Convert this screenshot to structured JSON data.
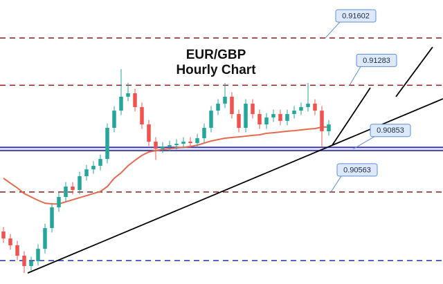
{
  "chart_data": {
    "type": "candlestick",
    "title": "EUR/GBP",
    "subtitle": "Hourly Chart",
    "xlim": [
      -0.5,
      63.5
    ],
    "ylim": [
      0.89943,
      0.91858
    ],
    "colors": {
      "up": "#26a69a",
      "down": "#ef5350"
    },
    "open": [
      0.90297,
      0.9025,
      0.90204,
      0.90134,
      0.90064,
      0.90097,
      0.9018,
      0.9032,
      0.9046,
      0.9053,
      0.906,
      0.90577,
      0.9067,
      0.90716,
      0.9074,
      0.90786,
      0.90996,
      0.91112,
      0.91206,
      0.91229,
      0.91136,
      0.91019,
      0.90903,
      0.90856,
      0.9087,
      0.90879,
      0.90889,
      0.90903,
      0.90893,
      0.90926,
      0.90996,
      0.91112,
      0.91159,
      0.91206,
      0.91089,
      0.90996,
      0.91159,
      0.91089,
      0.91019,
      0.91066,
      0.91089,
      0.91043,
      0.91089,
      0.91112,
      0.91136,
      0.91159,
      0.91112,
      0.90973
    ],
    "close": [
      0.9025,
      0.90204,
      0.90134,
      0.90064,
      0.90097,
      0.9018,
      0.9032,
      0.9046,
      0.9053,
      0.906,
      0.90577,
      0.9067,
      0.90716,
      0.9074,
      0.90786,
      0.90996,
      0.91112,
      0.91206,
      0.91229,
      0.91136,
      0.91019,
      0.90903,
      0.90856,
      0.9087,
      0.90879,
      0.90889,
      0.90903,
      0.90893,
      0.90926,
      0.90996,
      0.91112,
      0.91159,
      0.91206,
      0.91089,
      0.90996,
      0.91159,
      0.91089,
      0.91019,
      0.91066,
      0.91089,
      0.91043,
      0.91089,
      0.91112,
      0.91136,
      0.91159,
      0.91112,
      0.90973,
      0.91019
    ],
    "high": [
      0.90327,
      0.9028,
      0.90234,
      0.90164,
      0.90127,
      0.9021,
      0.9035,
      0.9049,
      0.9056,
      0.9063,
      0.9063,
      0.907,
      0.90746,
      0.9077,
      0.90816,
      0.91026,
      0.91142,
      0.91392,
      0.913,
      0.91259,
      0.91166,
      0.91049,
      0.90933,
      0.909,
      0.90909,
      0.90919,
      0.90933,
      0.90933,
      0.90956,
      0.91026,
      0.91142,
      0.91189,
      0.91299,
      0.91236,
      0.91119,
      0.91189,
      0.91189,
      0.91119,
      0.91096,
      0.91119,
      0.91119,
      0.91119,
      0.91142,
      0.91166,
      0.91299,
      0.91189,
      0.91142,
      0.91049
    ],
    "low": [
      0.9022,
      0.90174,
      0.90104,
      0.90017,
      0.90034,
      0.90067,
      0.9015,
      0.9029,
      0.9043,
      0.905,
      0.90547,
      0.90547,
      0.9064,
      0.90686,
      0.9071,
      0.90756,
      0.90966,
      0.91082,
      0.91176,
      0.91106,
      0.90989,
      0.90873,
      0.9078,
      0.90826,
      0.9084,
      0.90849,
      0.90859,
      0.90863,
      0.90863,
      0.90896,
      0.90966,
      0.91082,
      0.91129,
      0.91059,
      0.90966,
      0.90966,
      0.91059,
      0.90989,
      0.90989,
      0.91036,
      0.91013,
      0.91013,
      0.91059,
      0.91082,
      0.91106,
      0.91082,
      0.9087,
      0.90943
    ],
    "ma": {
      "color": "#e46a4e",
      "values": [
        0.90656,
        0.90623,
        0.90591,
        0.90553,
        0.9053,
        0.90507,
        0.90488,
        0.90483,
        0.90483,
        0.90497,
        0.90511,
        0.90525,
        0.90539,
        0.90553,
        0.90567,
        0.906,
        0.90656,
        0.90693,
        0.9074,
        0.90777,
        0.9081,
        0.90833,
        0.90842,
        0.90851,
        0.90856,
        0.90861,
        0.90865,
        0.9087,
        0.90879,
        0.90893,
        0.90907,
        0.90917,
        0.90926,
        0.90931,
        0.90935,
        0.9094,
        0.90945,
        0.90949,
        0.90959,
        0.90963,
        0.90968,
        0.90973,
        0.90977,
        0.90982,
        0.90987,
        0.90991,
        0.91001,
        0.91001
      ]
    },
    "levels": [
      {
        "value": 0.91602,
        "color": "#8b1a1a",
        "style": "dashed",
        "callout": true
      },
      {
        "value": 0.91283,
        "color": "#8b1a1a",
        "style": "dashed",
        "callout": true
      },
      {
        "value": 0.90563,
        "color": "#8b1a1a",
        "style": "dashed",
        "callout": true
      },
      {
        "value": 0.90101,
        "color": "#1f2fb8",
        "style": "dashed",
        "callout": false
      }
    ],
    "band": {
      "lower": 0.90842,
      "upper": 0.90865,
      "label": 0.90853,
      "color": "#1a1a8c"
    },
    "trendlines": [
      {
        "x": [
          3.5,
          63.5
        ],
        "y": [
          0.90017,
          0.91192
        ],
        "color": "#000000"
      },
      {
        "x": [
          47.5,
          53
        ],
        "y": [
          0.90879,
          0.91266
        ],
        "color": "#000000"
      },
      {
        "x": [
          56.7,
          62
        ],
        "y": [
          0.91206,
          0.91541
        ],
        "color": "#000000"
      }
    ]
  }
}
